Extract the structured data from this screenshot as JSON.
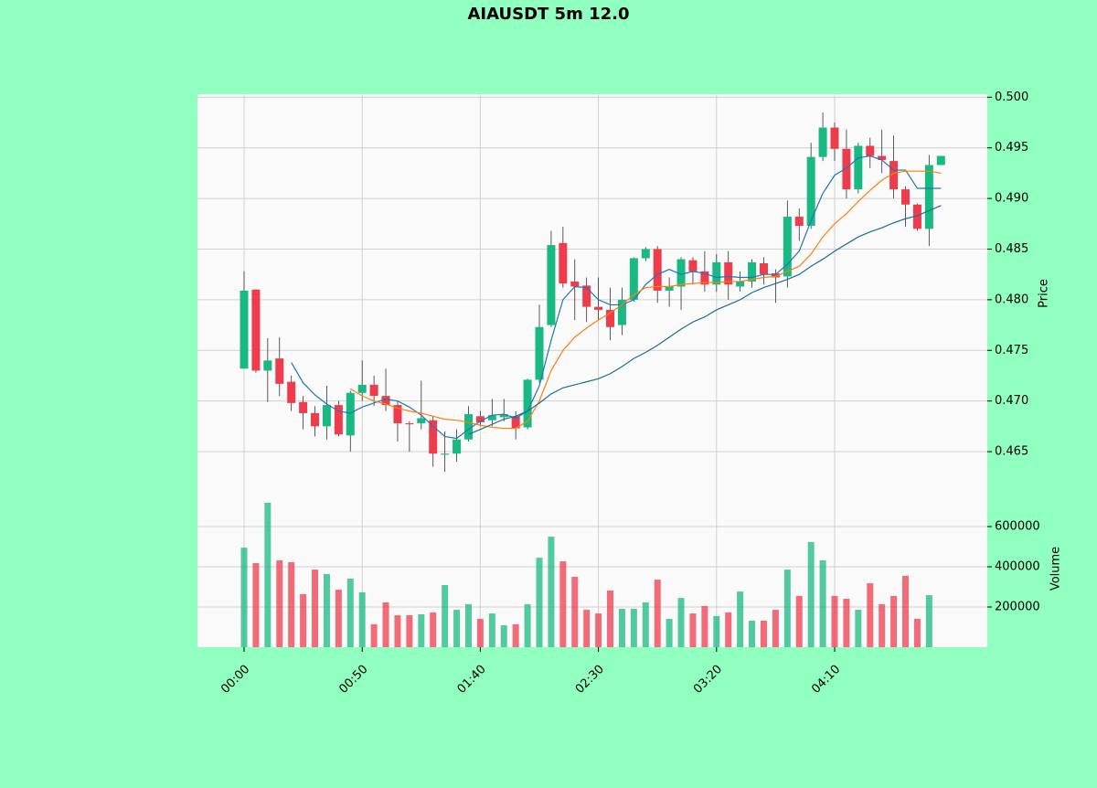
{
  "chart_data": {
    "type": "candlestick",
    "title": "AIAUSDT 5m 12.0",
    "categories": [
      "00:00",
      null,
      null,
      null,
      null,
      null,
      null,
      null,
      null,
      null,
      "00:50",
      null,
      null,
      null,
      null,
      null,
      null,
      null,
      null,
      null,
      "01:40",
      null,
      null,
      null,
      null,
      null,
      null,
      null,
      null,
      null,
      "02:30",
      null,
      null,
      null,
      null,
      null,
      null,
      null,
      null,
      null,
      "03:20",
      null,
      null,
      null,
      null,
      null,
      null,
      null,
      null,
      null,
      "04:10",
      null,
      null,
      null,
      null,
      null,
      null,
      null,
      null,
      null
    ],
    "open": [
      0.4732,
      0.481,
      0.473,
      0.4742,
      0.4719,
      0.4699,
      0.4688,
      0.4675,
      0.4696,
      0.4666,
      0.4708,
      0.4716,
      0.4705,
      0.4696,
      0.4678,
      0.4678,
      0.4681,
      0.4647,
      0.4648,
      0.4662,
      0.4685,
      0.4681,
      0.4684,
      0.4685,
      0.4674,
      0.4721,
      0.4775,
      0.4856,
      0.4818,
      0.4814,
      0.4793,
      0.479,
      0.4775,
      0.48,
      0.4841,
      0.485,
      0.4809,
      0.4813,
      0.4839,
      0.4828,
      0.4815,
      0.4837,
      0.4813,
      0.4818,
      0.4836,
      0.4826,
      0.4823,
      0.4882,
      0.4873,
      0.4941,
      0.497,
      0.4949,
      0.4909,
      0.4952,
      0.4942,
      0.4937,
      0.4909,
      0.4894,
      0.487,
      0.4933
    ],
    "high": [
      0.4828,
      0.481,
      0.4762,
      0.4763,
      0.4725,
      0.4705,
      0.4695,
      0.4715,
      0.47,
      0.471,
      0.474,
      0.4725,
      0.4732,
      0.47,
      0.468,
      0.472,
      0.4685,
      0.467,
      0.4672,
      0.4695,
      0.469,
      0.4702,
      0.4702,
      0.469,
      0.4722,
      0.4795,
      0.4868,
      0.4872,
      0.484,
      0.4822,
      0.4822,
      0.4812,
      0.4812,
      0.4842,
      0.4852,
      0.4853,
      0.4822,
      0.4842,
      0.4842,
      0.4848,
      0.4845,
      0.4848,
      0.4828,
      0.484,
      0.4842,
      0.483,
      0.4898,
      0.489,
      0.4955,
      0.4985,
      0.4975,
      0.4968,
      0.4955,
      0.496,
      0.4968,
      0.4962,
      0.4912,
      0.4895,
      0.4943,
      0.4942
    ],
    "low": [
      0.4732,
      0.4728,
      0.4699,
      0.4705,
      0.469,
      0.4672,
      0.4665,
      0.4662,
      0.4665,
      0.465,
      0.47,
      0.4695,
      0.469,
      0.466,
      0.465,
      0.4672,
      0.4635,
      0.463,
      0.464,
      0.466,
      0.4675,
      0.4675,
      0.468,
      0.4662,
      0.4672,
      0.4718,
      0.4773,
      0.4812,
      0.478,
      0.4778,
      0.478,
      0.476,
      0.4765,
      0.4798,
      0.4838,
      0.4797,
      0.4793,
      0.479,
      0.4815,
      0.4808,
      0.4808,
      0.48,
      0.4808,
      0.4812,
      0.4815,
      0.4797,
      0.4812,
      0.4858,
      0.487,
      0.4937,
      0.4937,
      0.49,
      0.4905,
      0.493,
      0.4925,
      0.49,
      0.4872,
      0.4868,
      0.4853,
      0.4933
    ],
    "close": [
      0.4809,
      0.473,
      0.474,
      0.4717,
      0.4698,
      0.4688,
      0.4675,
      0.4696,
      0.4667,
      0.4708,
      0.4716,
      0.4705,
      0.4696,
      0.4678,
      0.4677,
      0.4683,
      0.4648,
      0.4648,
      0.4662,
      0.4687,
      0.4679,
      0.4686,
      0.4687,
      0.4673,
      0.4721,
      0.4773,
      0.4854,
      0.4816,
      0.4813,
      0.4793,
      0.479,
      0.4773,
      0.48,
      0.4841,
      0.485,
      0.4809,
      0.4813,
      0.484,
      0.4828,
      0.4815,
      0.4837,
      0.4815,
      0.4818,
      0.4837,
      0.4825,
      0.4822,
      0.4882,
      0.4873,
      0.4941,
      0.497,
      0.4949,
      0.4909,
      0.4952,
      0.4942,
      0.4938,
      0.4909,
      0.4894,
      0.487,
      0.4933,
      0.4942
    ],
    "volume": [
      495000,
      418000,
      718000,
      432000,
      423000,
      264000,
      386000,
      364000,
      286000,
      341000,
      273000,
      114000,
      223000,
      159000,
      159000,
      164000,
      173000,
      309000,
      186000,
      214000,
      141000,
      168000,
      109000,
      114000,
      214000,
      445000,
      550000,
      427000,
      350000,
      186000,
      168000,
      282000,
      191000,
      191000,
      223000,
      336000,
      141000,
      245000,
      168000,
      205000,
      155000,
      173000,
      277000,
      132000,
      132000,
      186000,
      386000,
      255000,
      523000,
      432000,
      255000,
      241000,
      186000,
      318000,
      214000,
      255000,
      355000,
      141000,
      259000,
      null
    ],
    "up_color": "#18b982",
    "down_color": "#ee3c4c",
    "series": [
      {
        "color": "#1f77b4",
        "values": [
          null,
          null,
          null,
          null,
          0.4738,
          0.4718,
          0.4706,
          0.4697,
          0.469,
          0.4688,
          0.4694,
          0.4698,
          0.4702,
          0.47,
          0.4694,
          0.4686,
          0.4675,
          0.4665,
          0.4663,
          0.4672,
          0.468,
          0.4686,
          0.4687,
          0.4683,
          0.469,
          0.4715,
          0.476,
          0.48,
          0.4813,
          0.4812,
          0.48,
          0.4795,
          0.4795,
          0.48,
          0.4815,
          0.4825,
          0.483,
          0.4825,
          0.4828,
          0.4826,
          0.4822,
          0.4823,
          0.4822,
          0.4822,
          0.4825,
          0.4825,
          0.4835,
          0.4848,
          0.4878,
          0.4905,
          0.4923,
          0.493,
          0.494,
          0.4942,
          0.4938,
          0.4928,
          0.4928,
          0.491,
          0.491,
          0.491
        ]
      },
      {
        "color": "#ff7f0e",
        "values": [
          null,
          null,
          null,
          null,
          null,
          null,
          null,
          null,
          null,
          0.4712,
          0.4705,
          0.47,
          0.4697,
          0.4693,
          0.469,
          0.4688,
          0.4685,
          0.4682,
          0.4681,
          0.4679,
          0.4676,
          0.4674,
          0.4673,
          0.4673,
          0.468,
          0.47,
          0.473,
          0.475,
          0.4763,
          0.4772,
          0.478,
          0.4787,
          0.4795,
          0.4805,
          0.4812,
          0.4813,
          0.4813,
          0.4815,
          0.4816,
          0.4817,
          0.4817,
          0.4818,
          0.4818,
          0.482,
          0.4822,
          0.4823,
          0.4828,
          0.4833,
          0.4845,
          0.4862,
          0.4875,
          0.4885,
          0.4897,
          0.4908,
          0.4918,
          0.4925,
          0.4927,
          0.4927,
          0.4927,
          0.4925
        ]
      },
      {
        "color": "#1a6f95",
        "values": [
          null,
          null,
          null,
          null,
          null,
          null,
          null,
          null,
          null,
          null,
          null,
          null,
          null,
          null,
          null,
          null,
          null,
          null,
          null,
          0.4667,
          0.4672,
          0.4677,
          0.4682,
          0.4685,
          0.469,
          0.4698,
          0.4707,
          0.4713,
          0.4716,
          0.4719,
          0.4722,
          0.4727,
          0.4734,
          0.4742,
          0.4748,
          0.4755,
          0.4763,
          0.4771,
          0.4778,
          0.4783,
          0.479,
          0.4795,
          0.48,
          0.4807,
          0.4812,
          0.4816,
          0.482,
          0.4825,
          0.4833,
          0.484,
          0.4848,
          0.4855,
          0.4862,
          0.4867,
          0.4871,
          0.4876,
          0.488,
          0.4883,
          0.4888,
          0.4893
        ]
      }
    ],
    "ylabel": "Price",
    "ylim": [
      0.4604,
      0.5003
    ],
    "yticks": [
      {
        "value": 0.465,
        "label": "0.465"
      },
      {
        "value": 0.47,
        "label": "0.470"
      },
      {
        "value": 0.475,
        "label": "0.475"
      },
      {
        "value": 0.48,
        "label": "0.480"
      },
      {
        "value": 0.485,
        "label": "0.485"
      },
      {
        "value": 0.49,
        "label": "0.490"
      },
      {
        "value": 0.495,
        "label": "0.495"
      },
      {
        "value": 0.5,
        "label": "0.500"
      }
    ],
    "y2label": "Volume",
    "y2lim": [
      0,
      741000
    ],
    "y2ticks": [
      200000,
      400000,
      600000
    ],
    "grid": true
  }
}
